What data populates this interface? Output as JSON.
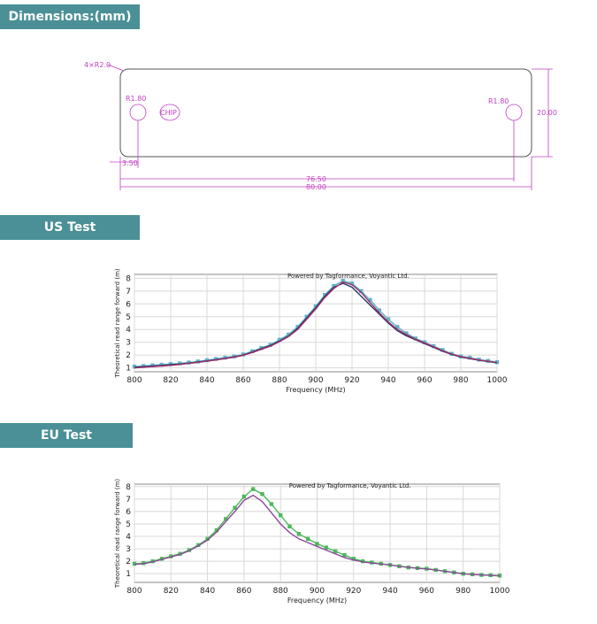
{
  "headings": [
    "Dimensions:(mm)",
    "US Test",
    "EU Test"
  ],
  "dimensions": {
    "corner": "4×R2.0",
    "hole_left": "R1.80",
    "chip": "CHIP",
    "hole_right": "R1.80",
    "height": "20.00",
    "hole_offset": "3.50",
    "hole_span": "76.50",
    "width": "80.00"
  },
  "chart_data": [
    {
      "type": "line",
      "annotation": "Powered by Tagformance, Voyantic Ltd.",
      "x_label": "Frequency (MHz)",
      "y_label": "Theoretical read range forward (m)",
      "x": [
        800,
        805,
        810,
        815,
        820,
        825,
        830,
        835,
        840,
        845,
        850,
        855,
        860,
        865,
        870,
        875,
        880,
        885,
        890,
        895,
        900,
        905,
        910,
        915,
        920,
        925,
        930,
        935,
        940,
        945,
        950,
        955,
        960,
        965,
        970,
        975,
        980,
        985,
        990,
        995,
        1000
      ],
      "xlim": [
        800,
        1000
      ],
      "ylim": [
        0.7,
        8.3
      ],
      "xticks": [
        800,
        820,
        840,
        860,
        880,
        900,
        920,
        940,
        960,
        980,
        1000
      ],
      "yticks": [
        1,
        2,
        3,
        4,
        5,
        6,
        7,
        8
      ],
      "grid": true,
      "series": [
        {
          "color": "#5fb3c9",
          "markers": true,
          "values": [
            1.1,
            1.15,
            1.2,
            1.25,
            1.3,
            1.35,
            1.42,
            1.5,
            1.6,
            1.7,
            1.8,
            1.9,
            2.05,
            2.3,
            2.55,
            2.8,
            3.2,
            3.6,
            4.2,
            5.0,
            5.8,
            6.7,
            7.4,
            7.8,
            7.6,
            7.0,
            6.3,
            5.5,
            4.8,
            4.2,
            3.7,
            3.3,
            3.0,
            2.7,
            2.4,
            2.1,
            1.9,
            1.8,
            1.65,
            1.55,
            1.45
          ]
        },
        {
          "color": "#2a3a6a",
          "markers": false,
          "values": [
            1.05,
            1.1,
            1.15,
            1.2,
            1.25,
            1.3,
            1.38,
            1.46,
            1.55,
            1.65,
            1.75,
            1.87,
            2.0,
            2.25,
            2.5,
            2.75,
            3.1,
            3.5,
            4.1,
            4.9,
            5.7,
            6.6,
            7.3,
            7.6,
            7.3,
            6.6,
            5.9,
            5.2,
            4.5,
            3.9,
            3.5,
            3.2,
            2.9,
            2.6,
            2.3,
            2.05,
            1.85,
            1.72,
            1.6,
            1.5,
            1.4
          ]
        },
        {
          "color": "#a0306a",
          "markers": false,
          "values": [
            1.0,
            1.05,
            1.1,
            1.15,
            1.2,
            1.27,
            1.35,
            1.43,
            1.52,
            1.62,
            1.72,
            1.84,
            1.98,
            2.2,
            2.45,
            2.7,
            3.05,
            3.45,
            4.0,
            4.8,
            5.6,
            6.5,
            7.2,
            7.7,
            7.5,
            6.9,
            6.1,
            5.3,
            4.6,
            4.0,
            3.6,
            3.25,
            2.95,
            2.65,
            2.35,
            2.08,
            1.88,
            1.75,
            1.62,
            1.52,
            1.42
          ]
        }
      ]
    },
    {
      "type": "line",
      "annotation": "Powered by Tagformance, Voyantic Ltd.",
      "x_label": "Frequency (MHz)",
      "y_label": "Theoretical read range forward (m)",
      "x": [
        800,
        805,
        810,
        815,
        820,
        825,
        830,
        835,
        840,
        845,
        850,
        855,
        860,
        865,
        870,
        875,
        880,
        885,
        890,
        895,
        900,
        905,
        910,
        915,
        920,
        925,
        930,
        935,
        940,
        945,
        950,
        955,
        960,
        965,
        970,
        975,
        980,
        985,
        990,
        995,
        1000
      ],
      "xlim": [
        800,
        1000
      ],
      "ylim": [
        0.3,
        8.2
      ],
      "xticks": [
        800,
        820,
        840,
        860,
        880,
        900,
        920,
        940,
        960,
        980,
        1000
      ],
      "yticks": [
        1,
        2,
        3,
        4,
        5,
        6,
        7,
        8
      ],
      "grid": true,
      "series": [
        {
          "color": "#4cb85c",
          "markers": true,
          "values": [
            1.8,
            1.85,
            2.0,
            2.2,
            2.4,
            2.6,
            2.9,
            3.3,
            3.8,
            4.5,
            5.4,
            6.3,
            7.2,
            7.8,
            7.4,
            6.6,
            5.7,
            4.8,
            4.2,
            3.8,
            3.4,
            3.1,
            2.8,
            2.5,
            2.2,
            2.0,
            1.9,
            1.8,
            1.7,
            1.6,
            1.5,
            1.45,
            1.4,
            1.3,
            1.2,
            1.1,
            1.0,
            0.95,
            0.9,
            0.88,
            0.85
          ]
        },
        {
          "color": "#8a4a9a",
          "markers": false,
          "values": [
            1.75,
            1.8,
            1.95,
            2.15,
            2.35,
            2.55,
            2.85,
            3.25,
            3.7,
            4.35,
            5.2,
            6.0,
            6.9,
            7.3,
            6.8,
            5.9,
            5.0,
            4.3,
            3.8,
            3.5,
            3.2,
            2.9,
            2.6,
            2.3,
            2.1,
            1.95,
            1.85,
            1.78,
            1.7,
            1.6,
            1.5,
            1.44,
            1.38,
            1.3,
            1.2,
            1.1,
            1.0,
            0.95,
            0.9,
            0.86,
            0.82
          ]
        }
      ]
    }
  ]
}
